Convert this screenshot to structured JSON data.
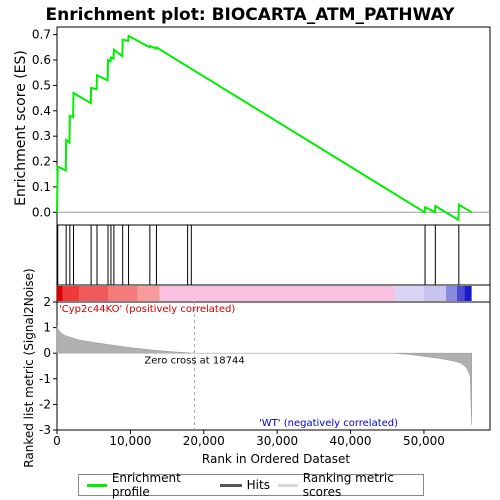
{
  "title": "Enrichment plot: BIOCARTA_ATM_PATHWAY",
  "colors": {
    "enrichment": "#00ee00",
    "hits": "#000000",
    "ranking": "#b0b0b0",
    "pos_label": "#cc0000",
    "neg_label": "#0000cc",
    "frame": "#000000"
  },
  "chart_data": [
    {
      "type": "line",
      "name": "enrichment-profile",
      "ylabel": "Enrichment score (ES)",
      "ylim": [
        -0.05,
        0.73
      ],
      "yticks": [
        0.0,
        0.1,
        0.2,
        0.3,
        0.4,
        0.5,
        0.6,
        0.7
      ],
      "ytick_labels": [
        "0.0",
        "0.1",
        "0.2",
        "0.3",
        "0.4",
        "0.5",
        "0.6",
        "0.7"
      ],
      "xlim": [
        0,
        59000
      ],
      "series": [
        {
          "x": [
            0,
            100,
            1200,
            1250,
            1700,
            1750,
            2200,
            2250,
            4600,
            4650,
            5400,
            5450,
            6900,
            6950,
            7300,
            7350,
            7700,
            7750,
            8900,
            8950,
            9700,
            9750,
            12600,
            12650,
            13500,
            13550,
            50100,
            50150,
            51500,
            51550,
            54700,
            54750,
            56500
          ],
          "y": [
            0.0,
            0.18,
            0.165,
            0.285,
            0.275,
            0.38,
            0.375,
            0.47,
            0.43,
            0.49,
            0.485,
            0.54,
            0.52,
            0.6,
            0.595,
            0.61,
            0.605,
            0.64,
            0.615,
            0.68,
            0.675,
            0.695,
            0.65,
            0.655,
            0.645,
            0.65,
            0.0,
            0.02,
            0.0,
            0.025,
            -0.03,
            0.03,
            0.0
          ]
        }
      ]
    },
    {
      "type": "hits",
      "name": "hits",
      "x": [
        100,
        1250,
        1750,
        2250,
        4650,
        5450,
        6950,
        7350,
        7750,
        8950,
        9750,
        12650,
        13550,
        17800,
        18300,
        50150,
        51550,
        54750
      ]
    },
    {
      "type": "area",
      "name": "ranking-metric",
      "xlabel": "Rank in Ordered Dataset",
      "ylabel": "Ranked list metric (Signal2Noise)",
      "ylim": [
        -3,
        2
      ],
      "yticks": [
        -3,
        -2,
        -1,
        0,
        1,
        2
      ],
      "ytick_labels": [
        "-3",
        "-2",
        "-1",
        "0",
        "1",
        "2"
      ],
      "xlim": [
        0,
        59000
      ],
      "xticks": [
        0,
        10000,
        20000,
        30000,
        40000,
        50000
      ],
      "xtick_labels": [
        "0",
        "10,000",
        "20,000",
        "30,000",
        "40,000",
        "50,000"
      ],
      "x": [
        0,
        100,
        500,
        1000,
        2000,
        3000,
        5000,
        7000,
        10000,
        13000,
        16000,
        18744,
        19000,
        30000,
        46000,
        48000,
        50000,
        52000,
        54000,
        55000,
        55800,
        56300,
        56500
      ],
      "values": [
        1.05,
        0.95,
        0.8,
        0.7,
        0.6,
        0.52,
        0.42,
        0.34,
        0.22,
        0.12,
        0.05,
        0.0,
        0.0,
        0.0,
        0.0,
        -0.05,
        -0.12,
        -0.2,
        -0.3,
        -0.38,
        -0.55,
        -0.9,
        -2.8
      ],
      "annotations": {
        "zero_cross": "Zero cross at 18744",
        "zero_cross_x": 18744,
        "pos_label": "'Cyp2c44KO' (positively correlated)",
        "neg_label": "'WT' (negatively correlated)"
      }
    }
  ],
  "legend": {
    "enrichment": "Enrichment profile",
    "hits": "Hits",
    "ranking": "Ranking metric scores"
  }
}
